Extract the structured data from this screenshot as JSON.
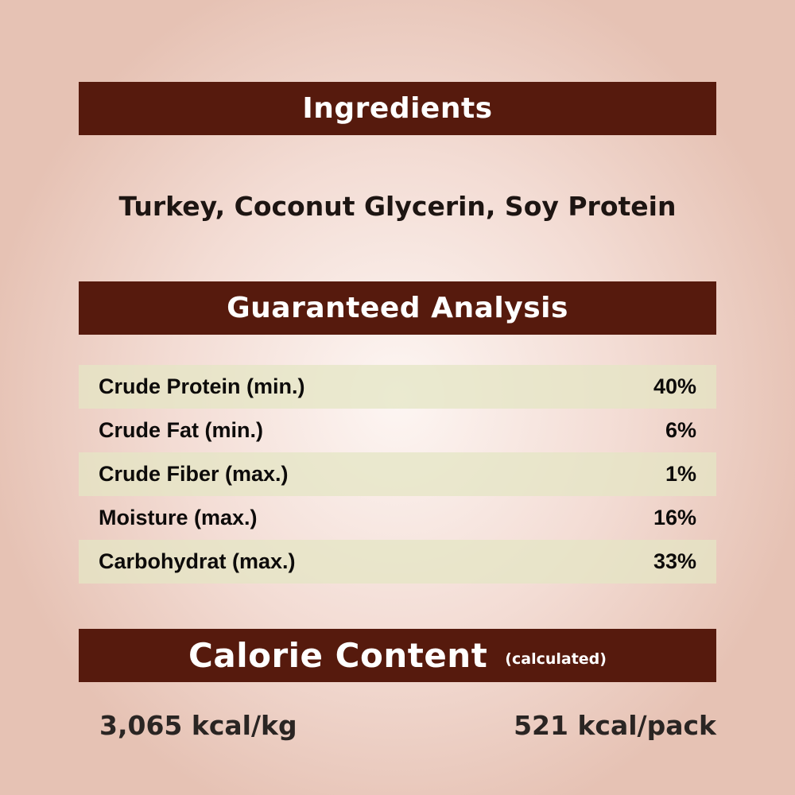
{
  "ingredients": {
    "heading": "Ingredients",
    "text": "Turkey, Coconut Glycerin, Soy Protein"
  },
  "analysis": {
    "heading": "Guaranteed Analysis",
    "rows": [
      {
        "label": "Crude Protein (min.)",
        "value": "40%"
      },
      {
        "label": "Crude Fat (min.)",
        "value": "6%"
      },
      {
        "label": "Crude Fiber (max.)",
        "value": "1%"
      },
      {
        "label": "Moisture (max.)",
        "value": "16%"
      },
      {
        "label": "Carbohydrat (max.)",
        "value": "33%"
      }
    ]
  },
  "calorie": {
    "heading": "Calorie Content",
    "note": "(calculated)",
    "per_kg": "3,065 kcal/kg",
    "per_pack": "521 kcal/pack"
  },
  "colors": {
    "header_bar": "#561a0d",
    "stripe": "#e4e6c4"
  }
}
